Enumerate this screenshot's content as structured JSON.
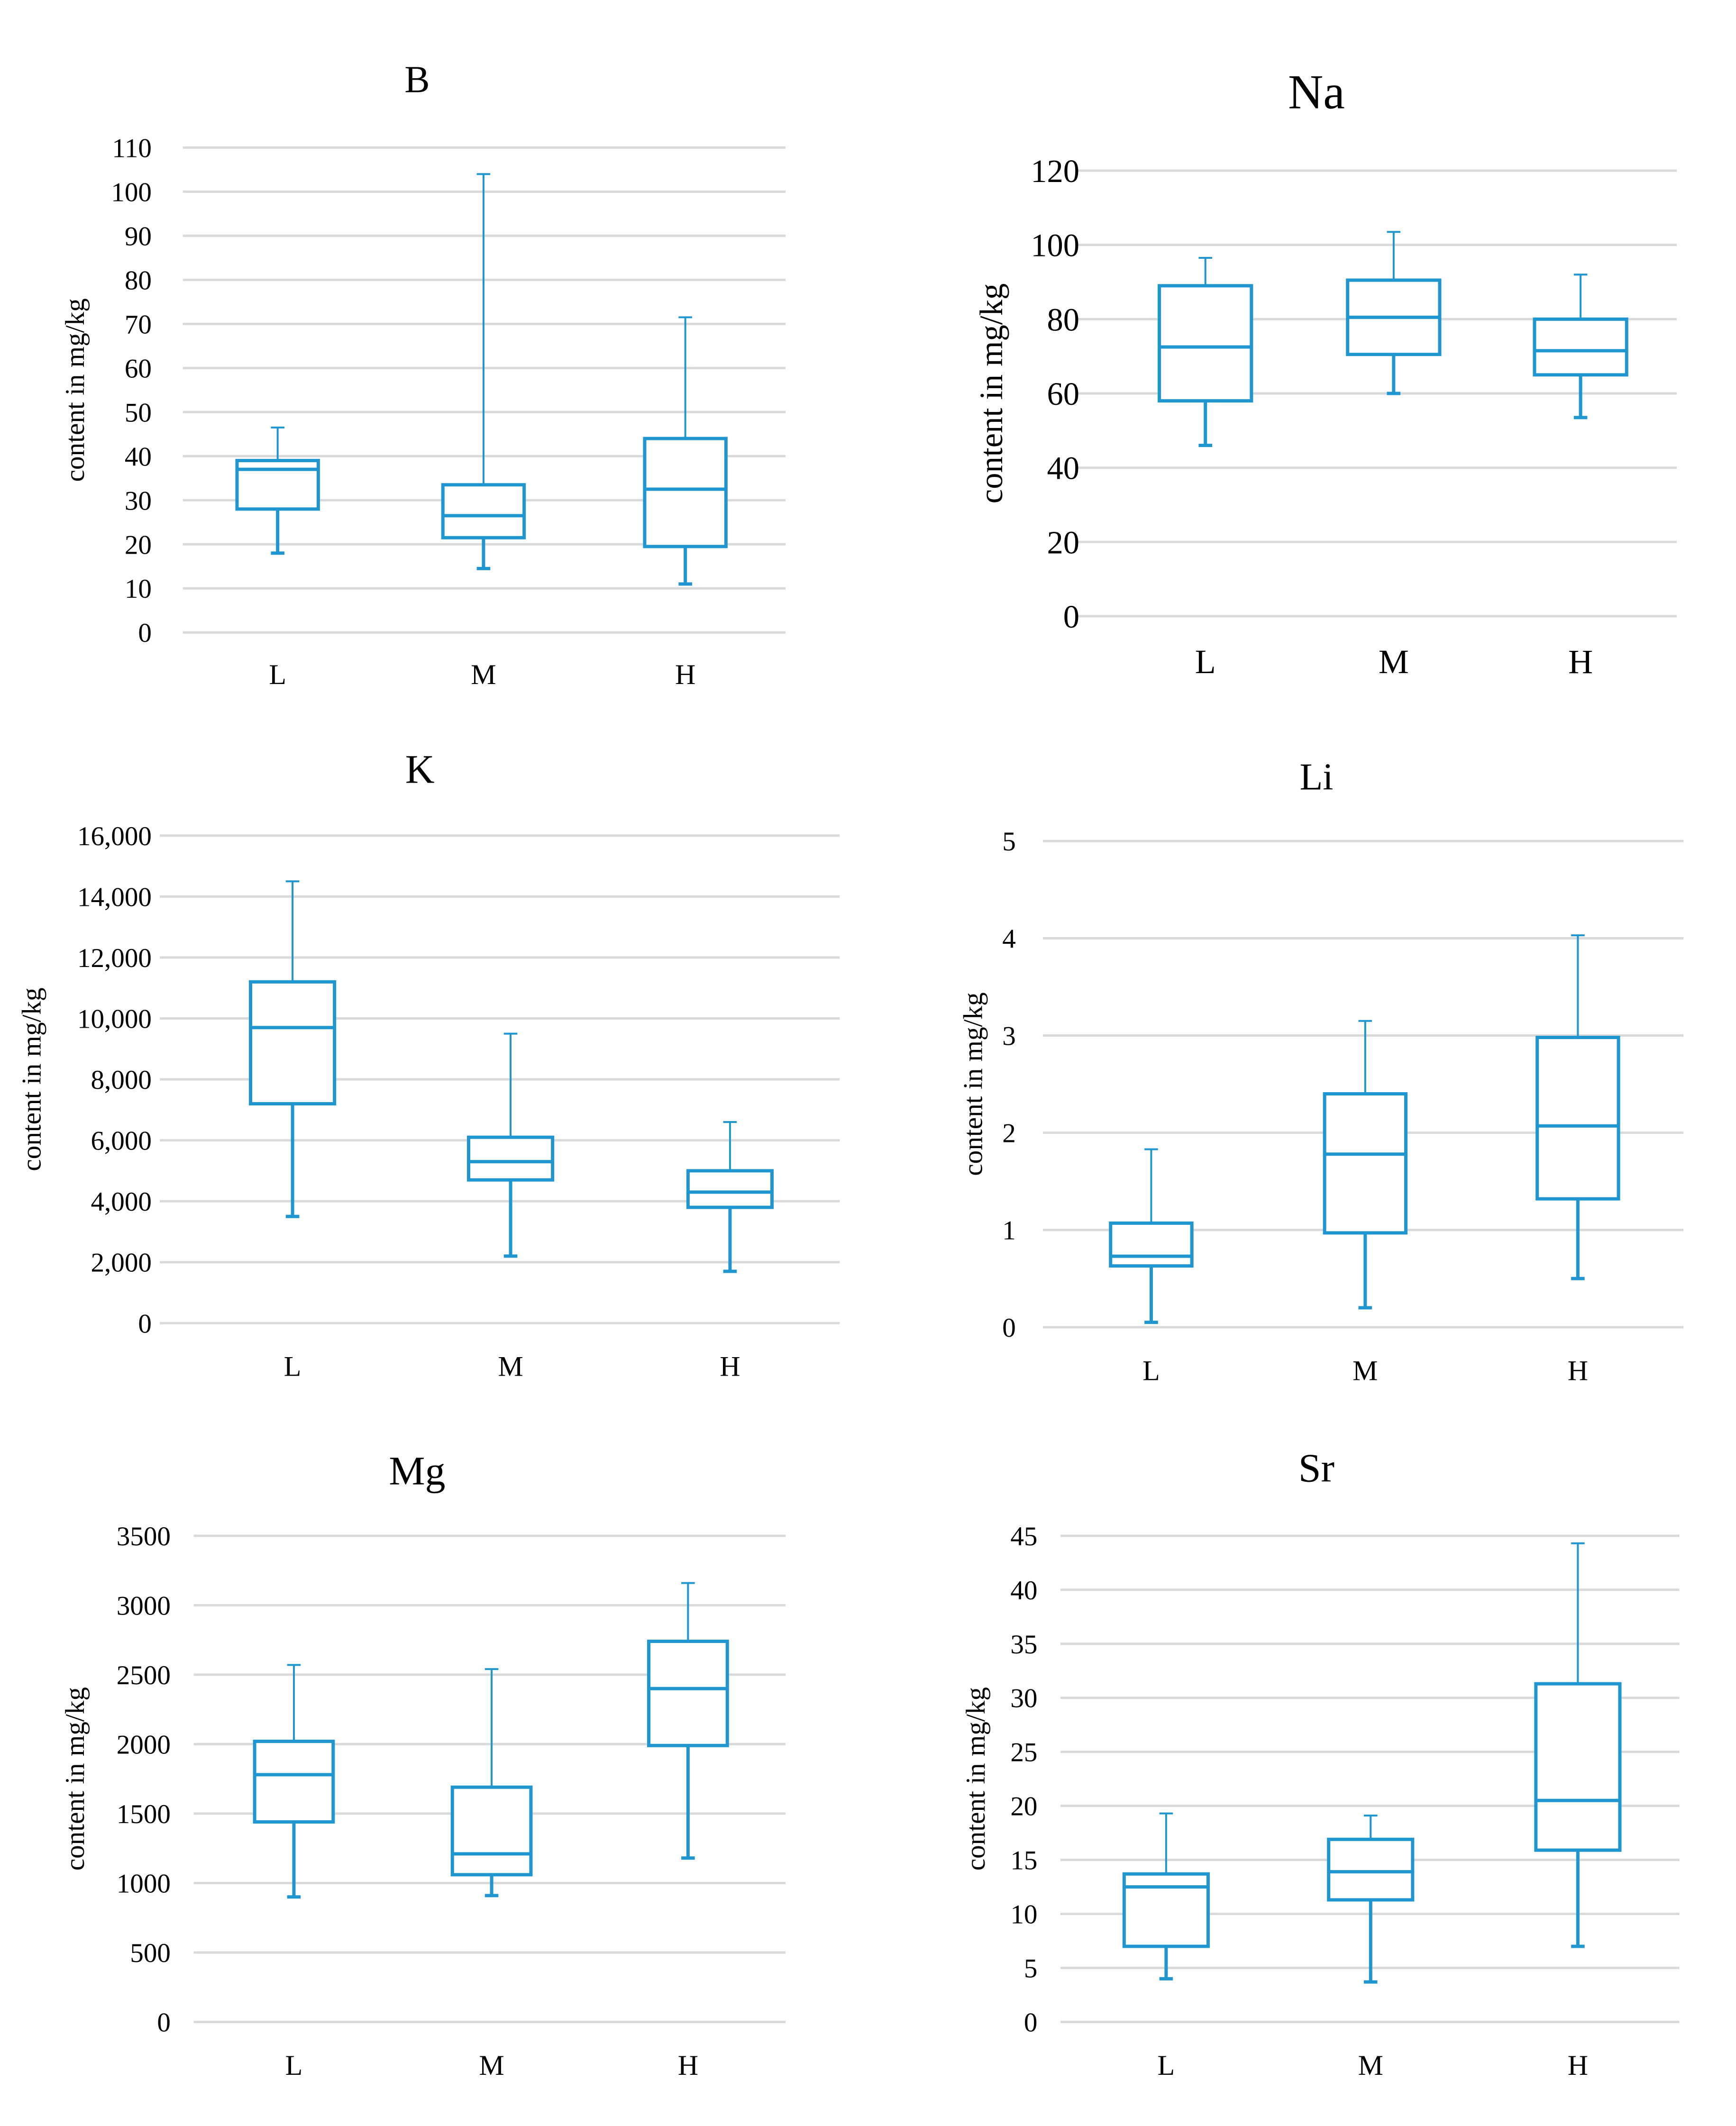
{
  "figure": {
    "ylabel_common": "content in mg/kg"
  },
  "chart_data": [
    {
      "type": "boxplot",
      "title": "B",
      "ylabel": "content in mg/kg",
      "ylim": [
        0,
        110
      ],
      "ticks": [
        "0",
        "10",
        "20",
        "30",
        "40",
        "50",
        "60",
        "70",
        "80",
        "90",
        "100",
        "110"
      ],
      "tick_values": [
        0,
        10,
        20,
        30,
        40,
        50,
        60,
        70,
        80,
        90,
        100,
        110
      ],
      "categories": [
        "L",
        "M",
        "H"
      ],
      "boxes": [
        {
          "category": "L",
          "min": 18,
          "q1": 28,
          "median": 37,
          "q3": 39,
          "max": 46.5
        },
        {
          "category": "M",
          "min": 14.5,
          "q1": 21.5,
          "median": 26.5,
          "q3": 33.5,
          "max": 104
        },
        {
          "category": "H",
          "min": 11,
          "q1": 19.5,
          "median": 32.5,
          "q3": 44,
          "max": 71.5
        }
      ],
      "color": "#1f96cf"
    },
    {
      "type": "boxplot",
      "title": "Na",
      "ylabel": "content in mg/kg",
      "ylim": [
        0,
        120
      ],
      "ticks": [
        "0",
        "20",
        "40",
        "60",
        "80",
        "100",
        "120"
      ],
      "tick_values": [
        0,
        20,
        40,
        60,
        80,
        100,
        120
      ],
      "categories": [
        "L",
        "M",
        "H"
      ],
      "boxes": [
        {
          "category": "L",
          "min": 46,
          "q1": 58,
          "median": 72.5,
          "q3": 89,
          "max": 96.5
        },
        {
          "category": "M",
          "min": 60,
          "q1": 70.5,
          "median": 80.5,
          "q3": 90.5,
          "max": 103.5
        },
        {
          "category": "H",
          "min": 53.5,
          "q1": 65,
          "median": 71.5,
          "q3": 80,
          "max": 92
        }
      ],
      "color": "#1f96cf"
    },
    {
      "type": "boxplot",
      "title": "K",
      "ylabel": "content in mg/kg",
      "ylim": [
        0,
        16000
      ],
      "ticks": [
        "0",
        "2,000",
        "4,000",
        "6,000",
        "8,000",
        "10,000",
        "12,000",
        "14,000",
        "16,000"
      ],
      "tick_values": [
        0,
        2000,
        4000,
        6000,
        8000,
        10000,
        12000,
        14000,
        16000
      ],
      "categories": [
        "L",
        "M",
        "H"
      ],
      "boxes": [
        {
          "category": "L",
          "min": 3500,
          "q1": 7200,
          "median": 9700,
          "q3": 11200,
          "max": 14500
        },
        {
          "category": "M",
          "min": 2200,
          "q1": 4700,
          "median": 5300,
          "q3": 6100,
          "max": 9500
        },
        {
          "category": "H",
          "min": 1700,
          "q1": 3800,
          "median": 4300,
          "q3": 5000,
          "max": 6600
        }
      ],
      "color": "#1f96cf"
    },
    {
      "type": "boxplot",
      "title": "Li",
      "ylabel": "content in mg/kg",
      "ylim": [
        0,
        5
      ],
      "ticks": [
        "0",
        "1",
        "2",
        "3",
        "4",
        "5"
      ],
      "tick_values": [
        0,
        1,
        2,
        3,
        4,
        5
      ],
      "categories": [
        "L",
        "M",
        "H"
      ],
      "boxes": [
        {
          "category": "L",
          "min": 0.05,
          "q1": 0.63,
          "median": 0.73,
          "q3": 1.07,
          "max": 1.83
        },
        {
          "category": "M",
          "min": 0.2,
          "q1": 0.97,
          "median": 1.78,
          "q3": 2.4,
          "max": 3.15
        },
        {
          "category": "H",
          "min": 0.5,
          "q1": 1.32,
          "median": 2.07,
          "q3": 2.98,
          "max": 4.03
        }
      ],
      "color": "#1f96cf"
    },
    {
      "type": "boxplot",
      "title": "Mg",
      "ylabel": "content in mg/kg",
      "ylim": [
        0,
        3500
      ],
      "ticks": [
        "0",
        "500",
        "1000",
        "1500",
        "2000",
        "2500",
        "3000",
        "3500"
      ],
      "tick_values": [
        0,
        500,
        1000,
        1500,
        2000,
        2500,
        3000,
        3500
      ],
      "categories": [
        "L",
        "M",
        "H"
      ],
      "boxes": [
        {
          "category": "L",
          "min": 900,
          "q1": 1440,
          "median": 1780,
          "q3": 2020,
          "max": 2570
        },
        {
          "category": "M",
          "min": 910,
          "q1": 1060,
          "median": 1210,
          "q3": 1690,
          "max": 2540
        },
        {
          "category": "H",
          "min": 1180,
          "q1": 1990,
          "median": 2400,
          "q3": 2740,
          "max": 3160
        }
      ],
      "color": "#1f96cf"
    },
    {
      "type": "boxplot",
      "title": "Sr",
      "ylabel": "content in mg/kg",
      "ylim": [
        0,
        45
      ],
      "ticks": [
        "0",
        "5",
        "10",
        "15",
        "20",
        "25",
        "30",
        "35",
        "40",
        "45"
      ],
      "tick_values": [
        0,
        5,
        10,
        15,
        20,
        25,
        30,
        35,
        40,
        45
      ],
      "categories": [
        "L",
        "M",
        "H"
      ],
      "boxes": [
        {
          "category": "L",
          "min": 4,
          "q1": 7,
          "median": 12.5,
          "q3": 13.7,
          "max": 19.3
        },
        {
          "category": "M",
          "min": 3.7,
          "q1": 11.3,
          "median": 13.9,
          "q3": 16.9,
          "max": 19.1
        },
        {
          "category": "H",
          "min": 7,
          "q1": 15.9,
          "median": 20.5,
          "q3": 31.3,
          "max": 44.3
        }
      ],
      "color": "#1f96cf"
    }
  ]
}
